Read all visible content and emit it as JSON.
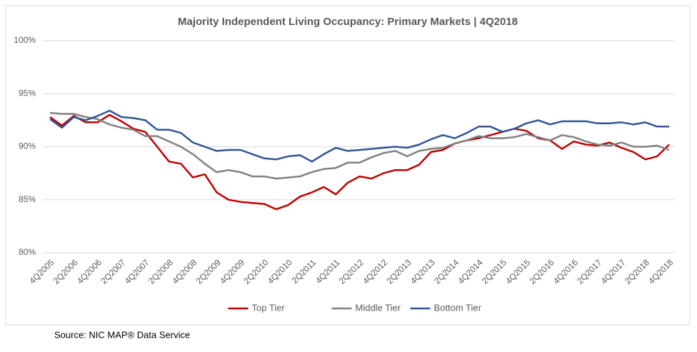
{
  "chart_data": {
    "type": "line",
    "title": "Majority Independent Living Occupancy: Primary Markets | 4Q2018",
    "categories": [
      "4Q2005",
      null,
      "2Q2006",
      null,
      "4Q2006",
      null,
      "2Q2007",
      null,
      "4Q2007",
      null,
      "2Q2008",
      null,
      "4Q2008",
      null,
      "2Q2009",
      null,
      "4Q2009",
      null,
      "2Q2010",
      null,
      "4Q2010",
      null,
      "2Q2011",
      null,
      "4Q2011",
      null,
      "2Q2012",
      null,
      "4Q2012",
      null,
      "2Q2013",
      null,
      "4Q2013",
      null,
      "2Q2014",
      null,
      "4Q2014",
      null,
      "2Q2015",
      null,
      "4Q2015",
      null,
      "2Q2016",
      null,
      "4Q2016",
      null,
      "2Q2017",
      null,
      "4Q2017",
      null,
      "2Q2018",
      null,
      "4Q2018"
    ],
    "series": [
      {
        "name": "Top Tier",
        "color": "#c00000",
        "values": [
          92.8,
          92.0,
          92.9,
          92.3,
          92.3,
          93.0,
          92.4,
          91.7,
          91.4,
          90.0,
          88.6,
          88.4,
          87.1,
          87.4,
          85.7,
          85.0,
          84.8,
          84.7,
          84.6,
          84.1,
          84.5,
          85.3,
          85.7,
          86.2,
          85.5,
          86.6,
          87.2,
          87.0,
          87.5,
          87.8,
          87.8,
          88.3,
          89.5,
          89.7,
          90.3,
          90.6,
          90.8,
          91.1,
          91.4,
          91.7,
          91.5,
          90.8,
          90.6,
          89.8,
          90.5,
          90.2,
          90.1,
          90.4,
          89.9,
          89.5,
          88.8,
          89.1,
          90.2
        ]
      },
      {
        "name": "Middle Tier",
        "color": "#808080",
        "values": [
          93.2,
          93.1,
          93.1,
          92.8,
          92.6,
          92.1,
          91.8,
          91.6,
          91.0,
          91.0,
          90.5,
          90.0,
          89.3,
          88.4,
          87.6,
          87.8,
          87.6,
          87.2,
          87.2,
          87.0,
          87.1,
          87.2,
          87.6,
          87.9,
          88.0,
          88.5,
          88.5,
          89.0,
          89.4,
          89.6,
          89.1,
          89.6,
          89.8,
          89.9,
          90.3,
          90.6,
          91.0,
          90.8,
          90.8,
          90.9,
          91.2,
          90.9,
          90.6,
          91.1,
          90.9,
          90.5,
          90.2,
          90.1,
          90.4,
          90.0,
          90.0,
          90.1,
          89.7
        ]
      },
      {
        "name": "Bottom Tier",
        "color": "#2f5597",
        "values": [
          92.6,
          91.8,
          92.8,
          92.5,
          92.9,
          93.4,
          92.8,
          92.7,
          92.5,
          91.6,
          91.6,
          91.3,
          90.4,
          90.0,
          89.6,
          89.7,
          89.7,
          89.3,
          88.9,
          88.8,
          89.1,
          89.2,
          88.6,
          89.3,
          89.9,
          89.6,
          89.7,
          89.8,
          89.9,
          90.0,
          89.9,
          90.2,
          90.7,
          91.1,
          90.8,
          91.3,
          91.9,
          91.9,
          91.4,
          91.7,
          92.2,
          92.5,
          92.1,
          92.4,
          92.4,
          92.4,
          92.2,
          92.2,
          92.3,
          92.1,
          92.3,
          91.9,
          91.9
        ]
      }
    ],
    "ylim": [
      80,
      100
    ],
    "yticks": [
      {
        "value": 80,
        "label": "80%"
      },
      {
        "value": 85,
        "label": "85%"
      },
      {
        "value": 90,
        "label": "90%"
      },
      {
        "value": 95,
        "label": "95%"
      },
      {
        "value": 100,
        "label": "100%"
      }
    ],
    "grid": true,
    "legend": "bottom"
  },
  "source": "Source: NIC MAP® Data Service"
}
